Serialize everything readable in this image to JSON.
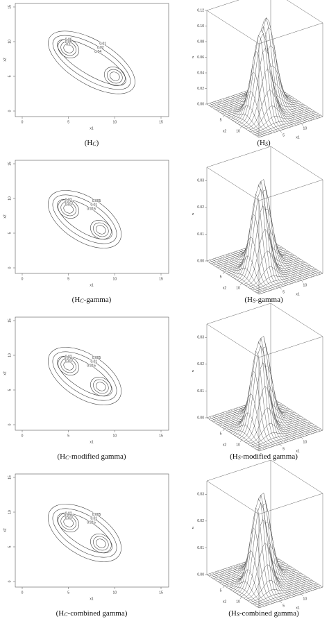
{
  "chart_data": [
    {
      "type": "contour",
      "xlabel": "x1",
      "ylabel": "x2",
      "xlim": [
        0,
        15
      ],
      "ylim": [
        0,
        15
      ],
      "xticks": [
        0,
        5,
        10,
        15
      ],
      "yticks": [
        0,
        5,
        10,
        15
      ],
      "peaks": [
        {
          "x": 5,
          "y": 9
        },
        {
          "x": 10,
          "y": 5
        }
      ],
      "levels": [
        0.01,
        0.02,
        0.04,
        0.06,
        0.08,
        0.1
      ],
      "caption": {
        "open": "(H",
        "sub": "C",
        "close": ")"
      }
    },
    {
      "type": "surface",
      "xlabel": "x1",
      "ylabel": "x2",
      "zlabel": "z",
      "xlim": [
        0,
        15
      ],
      "ylim": [
        0,
        15
      ],
      "xticks": [
        5,
        10
      ],
      "yticks": [
        5,
        10
      ],
      "zlim": [
        0,
        0.12
      ],
      "zticks": [
        {
          "value": 0,
          "label": "0.00"
        },
        {
          "value": 0.02,
          "label": "0.02"
        },
        {
          "value": 0.04,
          "label": "0.04"
        },
        {
          "value": 0.06,
          "label": "0.06"
        },
        {
          "value": 0.08,
          "label": "0.08"
        },
        {
          "value": 0.1,
          "label": "0.10"
        },
        {
          "value": 0.12,
          "label": "0.12"
        }
      ],
      "peaks": [
        {
          "x": 5.5,
          "y": 9,
          "z": 0.11
        },
        {
          "x": 9.5,
          "y": 5.5,
          "z": 0.11
        }
      ],
      "caption": {
        "open": "(H",
        "sub": "S",
        "close": ")"
      }
    },
    {
      "type": "contour",
      "xlabel": "x1",
      "ylabel": "x2",
      "xlim": [
        0,
        15
      ],
      "ylim": [
        0,
        15
      ],
      "xticks": [
        0,
        5,
        10,
        15
      ],
      "yticks": [
        0,
        5,
        10,
        15
      ],
      "peaks": [
        {
          "x": 5,
          "y": 8.5
        },
        {
          "x": 8.5,
          "y": 5.5
        }
      ],
      "levels": [
        0.005,
        0.01,
        0.015,
        0.02,
        0.025,
        0.03
      ],
      "caption": {
        "open": "(H",
        "sub": "C",
        "close": "-gamma)"
      }
    },
    {
      "type": "surface",
      "xlabel": "x1",
      "ylabel": "x2",
      "zlabel": "z",
      "xlim": [
        0,
        15
      ],
      "ylim": [
        0,
        15
      ],
      "xticks": [
        5,
        10
      ],
      "yticks": [
        5,
        10
      ],
      "zlim": [
        0,
        0.035
      ],
      "zticks": [
        {
          "value": 0,
          "label": "0.00"
        },
        {
          "value": 0.01,
          "label": "0.01"
        },
        {
          "value": 0.02,
          "label": "0.02"
        },
        {
          "value": 0.03,
          "label": "0.03"
        }
      ],
      "peaks": [
        {
          "x": 5,
          "y": 9,
          "z": 0.033
        },
        {
          "x": 8.5,
          "y": 5.5,
          "z": 0.031
        }
      ],
      "caption": {
        "open": "(H",
        "sub": "S",
        "close": "-gamma)"
      }
    },
    {
      "type": "contour",
      "xlabel": "x1",
      "ylabel": "x2",
      "xlim": [
        0,
        15
      ],
      "ylim": [
        0,
        15
      ],
      "xticks": [
        0,
        5,
        10,
        15
      ],
      "yticks": [
        0,
        5,
        10,
        15
      ],
      "peaks": [
        {
          "x": 5,
          "y": 8.5
        },
        {
          "x": 8.5,
          "y": 5.5
        }
      ],
      "levels": [
        0.005,
        0.01,
        0.015,
        0.02,
        0.025,
        0.03
      ],
      "caption": {
        "open": "(H",
        "sub": "C",
        "close": "-modified gamma)"
      }
    },
    {
      "type": "surface",
      "xlabel": "x1",
      "ylabel": "x2",
      "zlabel": "z",
      "xlim": [
        0,
        15
      ],
      "ylim": [
        0,
        15
      ],
      "xticks": [
        5,
        10
      ],
      "yticks": [
        5,
        10
      ],
      "zlim": [
        0,
        0.035
      ],
      "zticks": [
        {
          "value": 0,
          "label": "0.00"
        },
        {
          "value": 0.01,
          "label": "0.01"
        },
        {
          "value": 0.02,
          "label": "0.02"
        },
        {
          "value": 0.03,
          "label": "0.03"
        }
      ],
      "peaks": [
        {
          "x": 5,
          "y": 9,
          "z": 0.033
        },
        {
          "x": 8.5,
          "y": 5.5,
          "z": 0.031
        }
      ],
      "caption": {
        "open": "(H",
        "sub": "S",
        "close": "-modified gamma)"
      }
    },
    {
      "type": "contour",
      "xlabel": "x1",
      "ylabel": "x2",
      "xlim": [
        0,
        15
      ],
      "ylim": [
        0,
        15
      ],
      "xticks": [
        0,
        5,
        10,
        15
      ],
      "yticks": [
        0,
        5,
        10,
        15
      ],
      "peaks": [
        {
          "x": 5,
          "y": 8.5
        },
        {
          "x": 8.5,
          "y": 5.5
        }
      ],
      "levels": [
        0.005,
        0.01,
        0.015,
        0.02,
        0.025,
        0.03
      ],
      "caption": {
        "open": "(H",
        "sub": "C",
        "close": "-combined gamma)"
      }
    },
    {
      "type": "surface",
      "xlabel": "x1",
      "ylabel": "x2",
      "zlabel": "z",
      "xlim": [
        0,
        15
      ],
      "ylim": [
        0,
        15
      ],
      "xticks": [
        5,
        10
      ],
      "yticks": [
        5,
        10
      ],
      "zlim": [
        0,
        0.035
      ],
      "zticks": [
        {
          "value": 0,
          "label": "0.00"
        },
        {
          "value": 0.01,
          "label": "0.01"
        },
        {
          "value": 0.02,
          "label": "0.02"
        },
        {
          "value": 0.03,
          "label": "0.03"
        }
      ],
      "peaks": [
        {
          "x": 5,
          "y": 9,
          "z": 0.033
        },
        {
          "x": 8.5,
          "y": 5.5,
          "z": 0.031
        }
      ],
      "caption": {
        "open": "(H",
        "sub": "S",
        "close": "-combined gamma)"
      }
    }
  ]
}
